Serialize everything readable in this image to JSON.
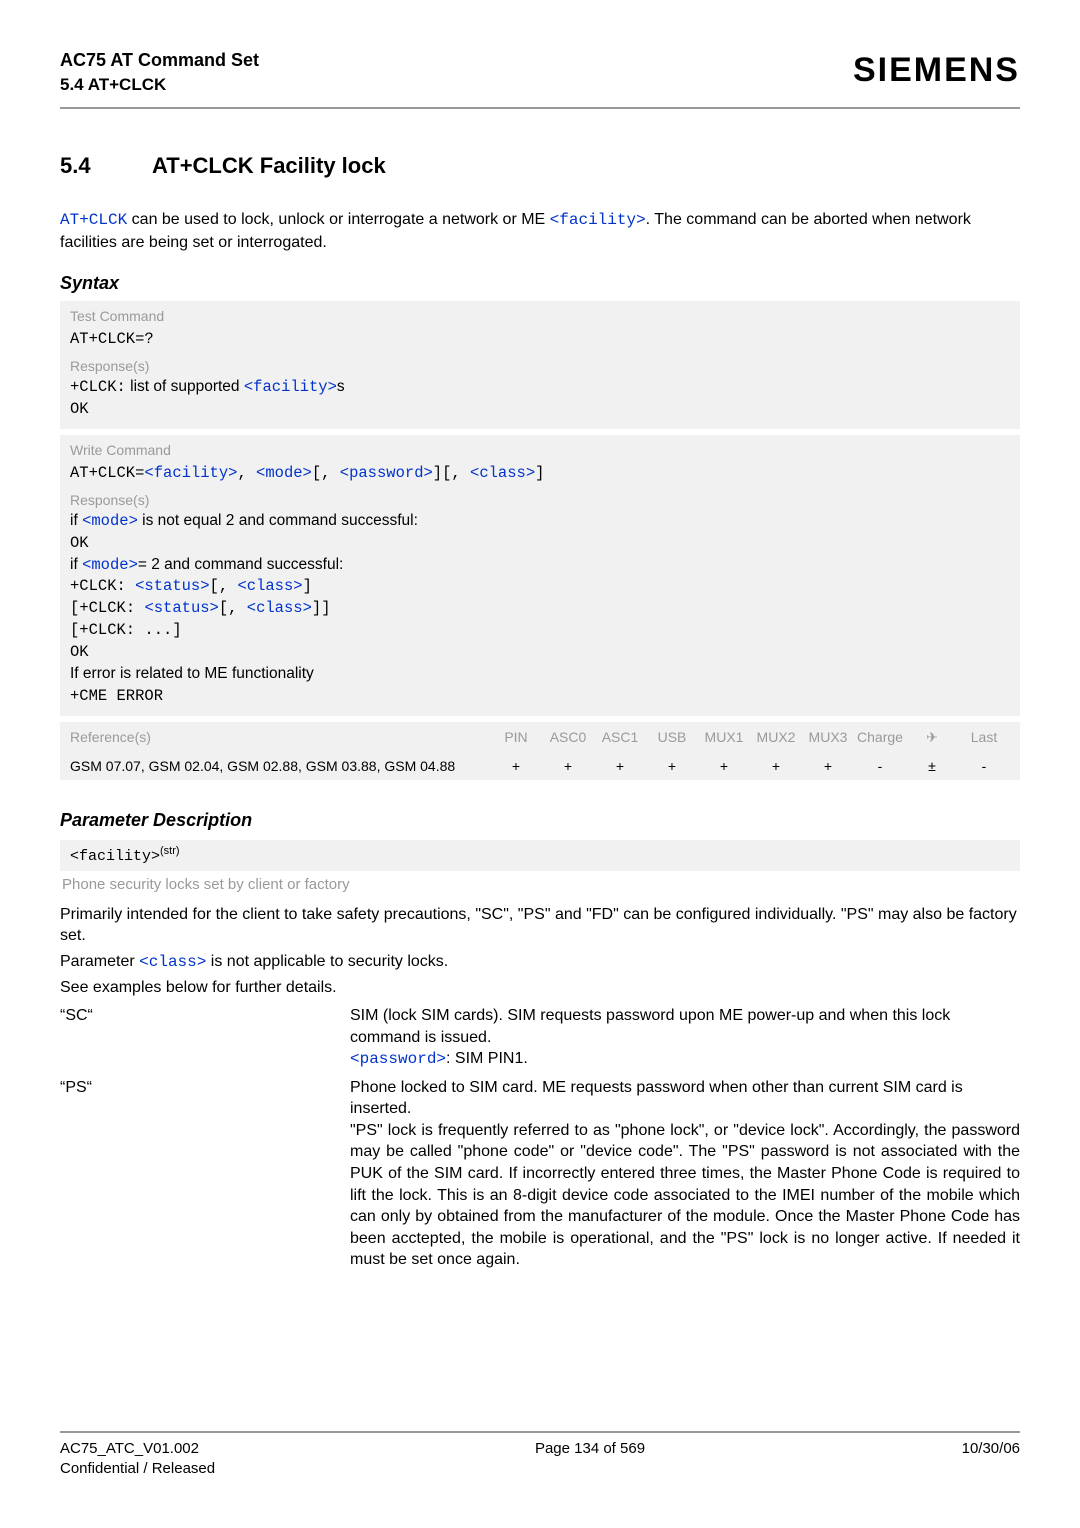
{
  "header": {
    "doc_title": "AC75 AT Command Set",
    "doc_sub": "5.4 AT+CLCK",
    "brand": "SIEMENS"
  },
  "section": {
    "number": "5.4",
    "title": "AT+CLCK   Facility lock"
  },
  "intro": {
    "cmd": "AT+CLCK",
    "text1": " can be used to lock, unlock or interrogate a network or ME ",
    "facility": "<facility>",
    "text2": ". The command can be aborted when network facilities are being set or interrogated."
  },
  "syntax_heading": "Syntax",
  "test_block": {
    "label": "Test Command",
    "line1": "AT+CLCK=?",
    "resp_label": "Response(s)",
    "resp_prefix": "+CLCK:",
    "resp_text": " list of supported ",
    "resp_fac": "<facility>",
    "resp_suffix": "s",
    "ok": "OK"
  },
  "write_block": {
    "label": "Write Command",
    "cmd_prefix": "AT+CLCK=",
    "p_fac": "<facility>",
    "p_mode": "<mode>",
    "p_pwd": "<password>",
    "p_class": "<class>",
    "resp_label": "Response(s)",
    "if1_a": "if ",
    "mode": "<mode>",
    "if1_b": " is not equal 2 and command successful:",
    "ok1": "OK",
    "if2_a": "if ",
    "if2_b": "= 2 and command successful:",
    "clck_prefix": "+CLCK: ",
    "status": "<status>",
    "class": "<class>",
    "ellipsis": "[+CLCK: ...]",
    "ok2": "OK",
    "err_text": "If error is related to ME functionality",
    "cme": "+CME ERROR"
  },
  "ref_block": {
    "ref_label": "Reference(s)",
    "cols": [
      "PIN",
      "ASC0",
      "ASC1",
      "USB",
      "MUX1",
      "MUX2",
      "MUX3",
      "Charge",
      "✈",
      "Last"
    ],
    "ref_body": "GSM 07.07, GSM 02.04, GSM 02.88, GSM 03.88, GSM 04.88",
    "vals": [
      "+",
      "+",
      "+",
      "+",
      "+",
      "+",
      "+",
      "-",
      "±",
      "-"
    ]
  },
  "param_heading": "Parameter Description",
  "param_name": "<facility>",
  "param_sup": "(str)",
  "param_sub": "Phone security locks set by client or factory",
  "param_body": {
    "p1": "Primarily intended for the client to take safety precautions, \"SC\", \"PS\" and \"FD\" can be configured individually. \"PS\" may also be factory set.",
    "p2a": "Parameter ",
    "p2_class": "<class>",
    "p2b": " is not applicable to security locks.",
    "p3": "See examples below for further details."
  },
  "rows": {
    "sc": {
      "k": "“SC“",
      "v1": "SIM (lock SIM cards). SIM requests password upon ME power-up and when this lock command is issued.",
      "v2a": "<password>",
      "v2b": ": SIM PIN1."
    },
    "ps": {
      "k": "“PS“",
      "v1": "Phone locked to SIM card. ME requests password when other than current SIM card is inserted.",
      "v2": "\"PS\" lock is frequently referred to as \"phone lock\", or \"device lock\". Accordingly, the password may be called \"phone code\" or \"device code\". The \"PS\" password is not associated with the PUK of the SIM card. If incorrectly entered three times, the Master Phone Code is required to lift the lock. This is an 8-digit device code associated to the IMEI number of the mobile which can only by obtained from the manufacturer of the module. Once the Master Phone Code has been acctepted, the mobile is operational, and the \"PS\" lock is no longer active. If needed it must be set once again."
    }
  },
  "footer": {
    "left1": "AC75_ATC_V01.002",
    "left2": "Confidential / Released",
    "center": "Page 134 of 569",
    "right": "10/30/06"
  },
  "colors": {
    "link": "#0033cc",
    "muted": "#9a9a9a",
    "box_bg": "#f1f1f1",
    "rule": "#999999"
  }
}
